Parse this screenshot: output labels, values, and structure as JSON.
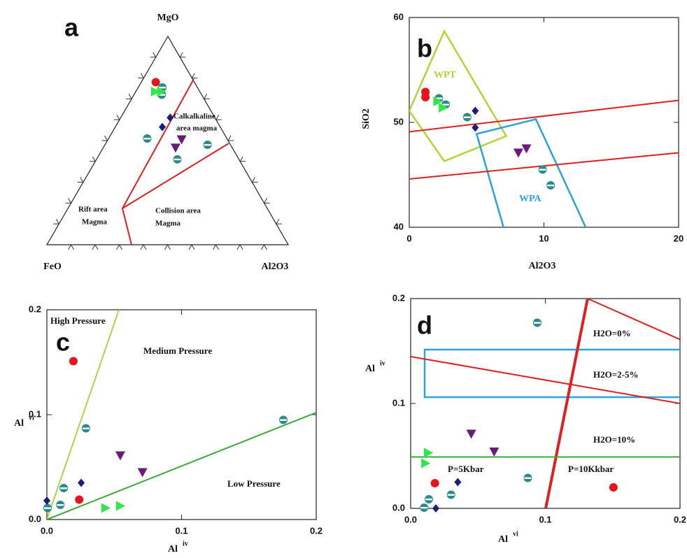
{
  "chart_data": [
    {
      "type": "ternary",
      "label": "a",
      "components": [
        "MgO",
        "FeO",
        "Al2O3"
      ],
      "annotations": [
        [
          "Calkalkaline",
          "area magma"
        ],
        [
          "Rift area",
          "Magma"
        ],
        [
          "Collision area",
          "Magma"
        ]
      ],
      "series": [
        {
          "color": "#e8141c",
          "marker": "circle",
          "values": [
            [
              78,
              16,
              6
            ]
          ]
        },
        {
          "color": "#2b8a8c",
          "marker": "halfcircle",
          "values": [
            [
              75.5,
              14.5,
              10
            ],
            [
              72,
              16.5,
              11.5
            ],
            [
              51,
              33,
              16
            ],
            [
              48,
              9.5,
              42.5
            ],
            [
              41,
              25.5,
              33.5
            ]
          ]
        },
        {
          "color": "#1b1f7a",
          "marker": "diamond",
          "values": [
            [
              61,
              18.5,
              20.5
            ],
            [
              56.5,
              24,
              19.5
            ]
          ]
        },
        {
          "color": "#6a1b7a",
          "marker": "triangle-down",
          "values": [
            [
              46.5,
              23.5,
              30
            ],
            [
              50.5,
              19,
              30.5
            ]
          ]
        },
        {
          "color": "#2ee84a",
          "marker": "triangle-right",
          "values": [
            [
              73.5,
              18.5,
              8
            ],
            [
              73.5,
              16,
              10.5
            ]
          ]
        }
      ]
    },
    {
      "type": "scatter",
      "label": "b",
      "xlabel": "Al2O3",
      "ylabel": "SiO2",
      "xlim": [
        0,
        20
      ],
      "ylim": [
        40,
        60
      ],
      "xticks": [
        0,
        10,
        20
      ],
      "yticks": [
        40,
        50,
        60
      ],
      "series": [
        {
          "color": "#e8141c",
          "marker": "circle",
          "x": [
            1.2,
            1.2
          ],
          "y": [
            52.9,
            52.4
          ]
        },
        {
          "color": "#2b8a8c",
          "marker": "halfcircle",
          "x": [
            2.2,
            2.7,
            4.3,
            9.9,
            10.5
          ],
          "y": [
            52.3,
            51.7,
            50.5,
            45.5,
            44.0
          ]
        },
        {
          "color": "#1b1f7a",
          "marker": "diamond",
          "x": [
            4.9,
            4.9
          ],
          "y": [
            51.1,
            49.5
          ]
        },
        {
          "color": "#6a1b7a",
          "marker": "triangle-down",
          "x": [
            8.1,
            8.7
          ],
          "y": [
            47.1,
            47.5
          ]
        },
        {
          "color": "#2ee84a",
          "marker": "triangle-right",
          "x": [
            2.1,
            2.5
          ],
          "y": [
            52.0,
            51.4
          ]
        }
      ],
      "lines": [
        {
          "color": "#e02020",
          "width": 2,
          "x": [
            0,
            20
          ],
          "y": [
            49.1,
            52.1
          ]
        },
        {
          "color": "#e02020",
          "width": 2,
          "x": [
            0,
            20
          ],
          "y": [
            44.6,
            47.1
          ]
        }
      ],
      "polygons": [
        {
          "label": "WPT",
          "color": "#b5d334",
          "closed": true,
          "x": [
            2.6,
            7.2,
            2.6,
            0
          ],
          "y": [
            58.7,
            48.7,
            46.3,
            51.1
          ]
        },
        {
          "label": "WPA",
          "color": "#29a3dc",
          "closed": false,
          "x": [
            7.0,
            5.0,
            9.4,
            13.1
          ],
          "y": [
            40,
            48.9,
            50.3,
            40
          ]
        }
      ]
    },
    {
      "type": "scatter",
      "label": "c",
      "xlabel": "Al",
      "xlabel_sup": "iv",
      "ylabel": "Al",
      "ylabel_sup": "vi",
      "xlim": [
        0,
        0.2
      ],
      "ylim": [
        0,
        0.2
      ],
      "xticks": [
        {
          "value": 0,
          "label": "0.0"
        },
        0.1,
        0.2
      ],
      "yticks": [
        {
          "value": 0,
          "label": "0.0"
        },
        0.1,
        0.2
      ],
      "annotations": [
        "High Pressure",
        "Medium Pressure",
        "Low Pressure"
      ],
      "series": [
        {
          "color": "#e8141c",
          "marker": "circle",
          "x": [
            0.0197,
            0.024
          ],
          "y": [
            0.151,
            0.019
          ]
        },
        {
          "color": "#2b8a8c",
          "marker": "halfcircle",
          "x": [
            0.029,
            0.0125,
            0.01,
            0.0005,
            0.1756
          ],
          "y": [
            0.087,
            0.03,
            0.014,
            0.011,
            0.095
          ]
        },
        {
          "color": "#1b1f7a",
          "marker": "diamond",
          "x": [
            0,
            0.0255
          ],
          "y": [
            0.018,
            0.035
          ]
        },
        {
          "color": "#6a1b7a",
          "marker": "triangle-down",
          "x": [
            0.0545,
            0.071
          ],
          "y": [
            0.061,
            0.045
          ]
        },
        {
          "color": "#2ee84a",
          "marker": "triangle-right",
          "x": [
            0.0436,
            0.0545
          ],
          "y": [
            0.011,
            0.013
          ]
        }
      ],
      "lines": [
        {
          "color": "#a8d84a",
          "width": 2,
          "x": [
            0,
            0.0535
          ],
          "y": [
            0,
            0.2
          ]
        },
        {
          "color": "#3aaa35",
          "width": 2,
          "x": [
            0,
            0.2
          ],
          "y": [
            0,
            0.102
          ]
        }
      ]
    },
    {
      "type": "scatter",
      "label": "d",
      "xlabel": "Al",
      "xlabel_sup": "vi",
      "ylabel": "Al",
      "ylabel_sup": "iv",
      "xlim": [
        0,
        0.2
      ],
      "ylim": [
        0,
        0.2
      ],
      "xticks": [
        {
          "value": 0,
          "label": "0.0"
        },
        0.1,
        0.2
      ],
      "yticks": [
        {
          "value": 0,
          "label": "0.0"
        },
        0.1,
        0.2
      ],
      "annotations": [
        "H2O=0%",
        "H2O=2-5%",
        "H2O=10%",
        "P=5Kbar",
        "P=10Kkbar"
      ],
      "series": [
        {
          "color": "#e8141c",
          "marker": "circle",
          "x": [
            0.018,
            0.1506
          ],
          "y": [
            0.024,
            0.02
          ]
        },
        {
          "color": "#2b8a8c",
          "marker": "halfcircle",
          "x": [
            0.094,
            0.087,
            0.03,
            0.0135,
            0.01
          ],
          "y": [
            0.177,
            0.029,
            0.013,
            0.0087,
            0.0007
          ]
        },
        {
          "color": "#1b1f7a",
          "marker": "diamond",
          "x": [
            0.035,
            0.0187
          ],
          "y": [
            0.025,
            0
          ]
        },
        {
          "color": "#6a1b7a",
          "marker": "triangle-down",
          "x": [
            0.045,
            0.062
          ],
          "y": [
            0.071,
            0.054
          ]
        },
        {
          "color": "#2ee84a",
          "marker": "triangle-right",
          "x": [
            0.013,
            0.011
          ],
          "y": [
            0.053,
            0.043
          ]
        }
      ],
      "lines": [
        {
          "color": "#e02020",
          "width": 4,
          "x": [
            0.1003,
            0.1314
          ],
          "y": [
            0,
            0.2
          ]
        },
        {
          "color": "#e02020",
          "width": 2,
          "x": [
            0,
            0.2
          ],
          "y": [
            0.1447,
            0.1
          ]
        },
        {
          "color": "#e02020",
          "width": 2,
          "x": [
            0.1314,
            0.2
          ],
          "y": [
            0.2,
            0.161
          ]
        },
        {
          "color": "#3aaa35",
          "width": 2,
          "x": [
            0,
            0.2
          ],
          "y": [
            0.049,
            0.049
          ]
        }
      ],
      "polygons": [
        {
          "color": "#29a3dc",
          "closed": false,
          "x": [
            0.2,
            0.0104,
            0.0104,
            0.2
          ],
          "y": [
            0.1513,
            0.1513,
            0.106,
            0.106
          ]
        }
      ]
    }
  ]
}
